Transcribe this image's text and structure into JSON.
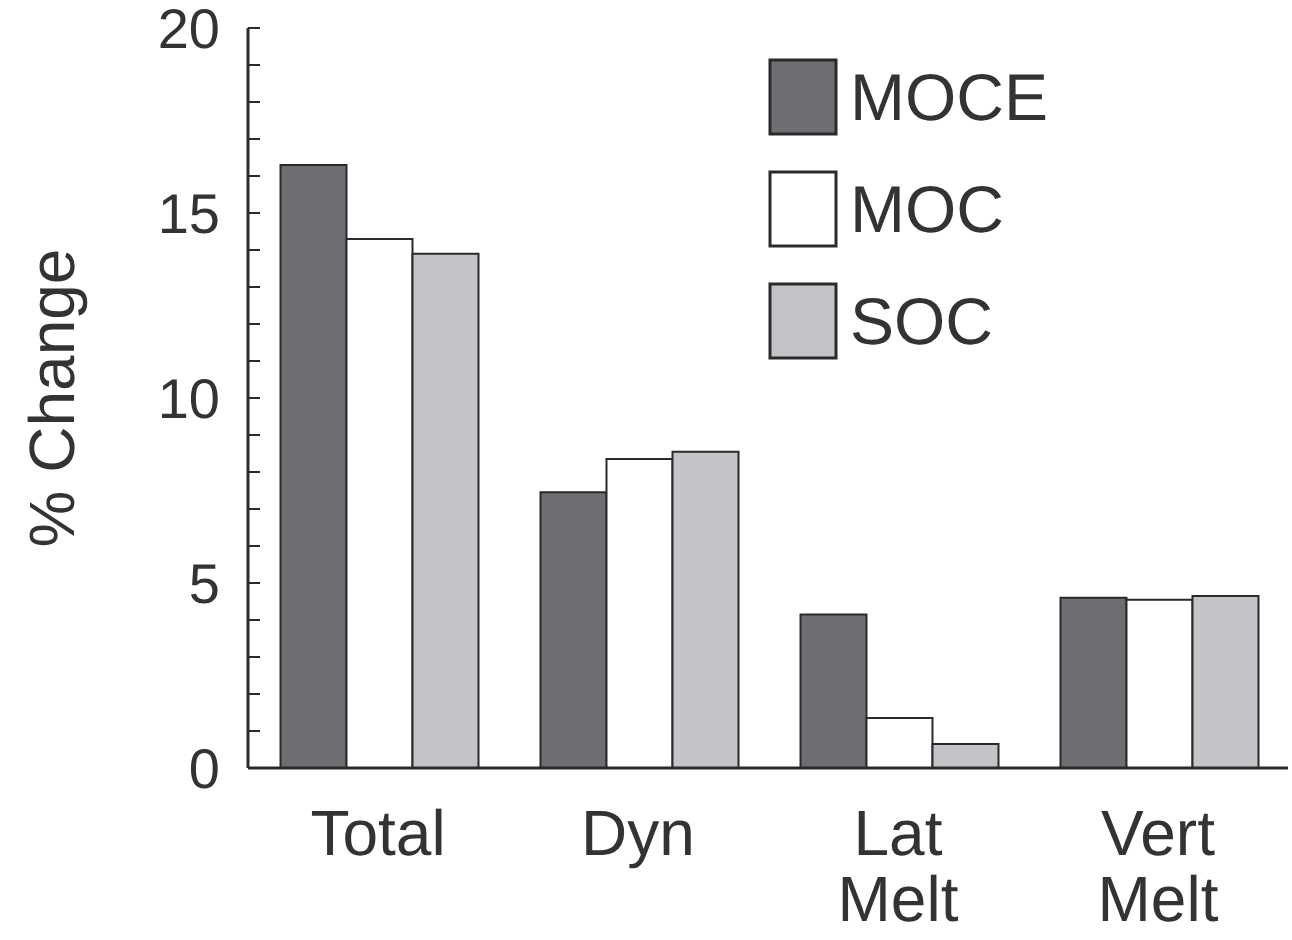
{
  "chart_data": {
    "type": "bar",
    "ylabel": "% Change",
    "categories": [
      "Total",
      "Dyn",
      "Lat Melt",
      "Vert Melt"
    ],
    "series": [
      {
        "name": "MOCE",
        "color": "#6d6e72",
        "values": [
          16.3,
          7.45,
          4.15,
          4.6
        ]
      },
      {
        "name": "MOC",
        "color": "#ffffff",
        "values": [
          14.3,
          8.35,
          1.35,
          4.55
        ]
      },
      {
        "name": "SOC",
        "color": "#c3c4c8",
        "values": [
          13.9,
          8.55,
          0.65,
          4.65
        ]
      }
    ],
    "ylim": [
      0,
      20
    ],
    "yticks": [
      0,
      {
        "value": 1,
        "label": null
      },
      {
        "value": 2,
        "label": null
      },
      {
        "value": 3,
        "label": null
      },
      {
        "value": 4,
        "label": null
      },
      5,
      {
        "value": 6,
        "label": null
      },
      {
        "value": 7,
        "label": null
      },
      {
        "value": 8,
        "label": null
      },
      {
        "value": 9,
        "label": null
      },
      10,
      {
        "value": 11,
        "label": null
      },
      {
        "value": 12,
        "label": null
      },
      {
        "value": 13,
        "label": null
      },
      {
        "value": 14,
        "label": null
      },
      15,
      {
        "value": 16,
        "label": null
      },
      {
        "value": 17,
        "label": null
      },
      {
        "value": 18,
        "label": null
      },
      {
        "value": 19,
        "label": null
      },
      20
    ],
    "grid": false,
    "legend": "top right"
  }
}
